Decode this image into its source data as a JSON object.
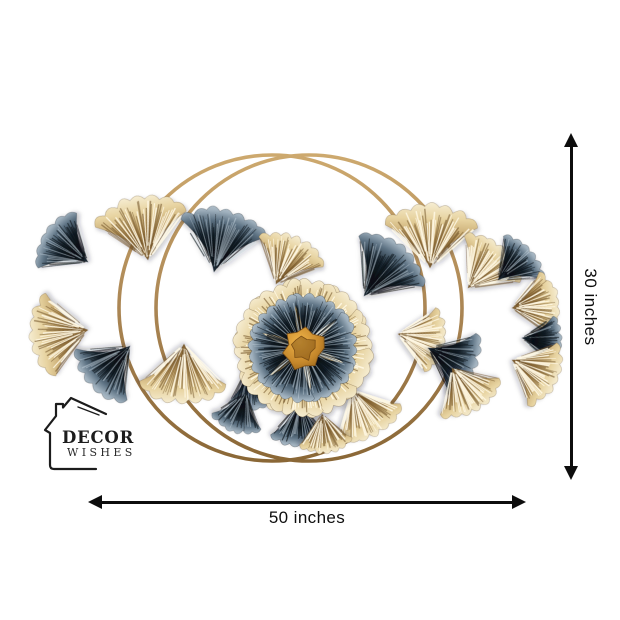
{
  "page": {
    "background": "#ffffff"
  },
  "brand": {
    "line1": "DECOR",
    "line2": "WISHES"
  },
  "dimensions": {
    "width_label": "50 inches",
    "height_label": "30 inches"
  },
  "artwork": {
    "alt": "Gold and slate-blue metal flower wall decor framed by two overlapping gold rings",
    "colors": {
      "background": "#ffffff",
      "annotation": "#0d0d0d",
      "logo_ink": "#1c1c1c",
      "ring_gold_light": "#cda96e",
      "ring_gold": "#ab8654",
      "ring_gold_dark": "#8a6736",
      "gold_base": "#7c5c30",
      "gold_mid": "#b9975c",
      "gold_light": "#e7d3a0",
      "gold_pale": "#f6edd2",
      "gold_line_light": "#fff8e4",
      "gold_line_dark": "#6e4f23",
      "blue_edge": "#b7c4cd",
      "blue_light": "#9fb0bd",
      "blue_mid": "#5d7283",
      "blue_dark": "#1d2b36",
      "blue_core": "#0d151d",
      "blue_line_dark": "#070d13",
      "blue_line_light": "#c6d3dd",
      "center_gold_light": "#f0b54a",
      "center_gold": "#c5872b",
      "center_gold_dark": "#7a4e14"
    }
  }
}
